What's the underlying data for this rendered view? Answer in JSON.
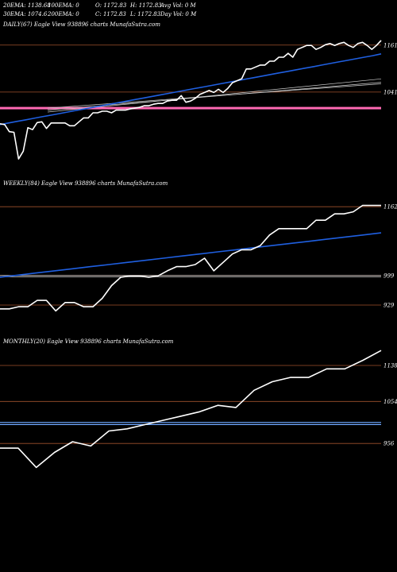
{
  "header": {
    "row1": {
      "ema20": "20EMA: 1138.68",
      "ema100": "100EMA: 0",
      "open": "O: 1172.83",
      "high": "H: 1172.83",
      "avgvol": "Avg Vol: 0  M"
    },
    "row2": {
      "ema30": "30EMA: 1074.6",
      "ema200": "200EMA: 0",
      "close": "C: 1172.83",
      "low": "L: 1172.83",
      "dayvol": "Day Vol: 0  M"
    }
  },
  "colors": {
    "price": "#ffffff",
    "ema": "#1f5fe0",
    "level": "#a0522d",
    "support": "#ff69b4",
    "support_weekly": "#cccccc",
    "support_monthly": "#6ea8ff"
  },
  "chart_data": [
    {
      "type": "line",
      "title": "DAILY(67) Eagle  View  938896  charts MunafaSutra.com",
      "levels": [
        {
          "value": 1161,
          "label": "1161"
        },
        {
          "value": 1041,
          "label": "1041"
        }
      ],
      "ylim": [
        850,
        1195
      ],
      "series": [
        {
          "values": [
            960,
            958,
            940,
            938,
            870,
            890,
            950,
            945,
            963,
            965,
            948,
            962,
            962,
            962,
            962,
            955,
            955,
            965,
            975,
            975,
            988,
            988,
            992,
            992,
            988,
            995,
            995,
            995,
            998,
            1000,
            1002,
            1006,
            1006,
            1010,
            1012,
            1012,
            1018,
            1020,
            1020,
            1032,
            1015,
            1018,
            1025,
            1035,
            1040,
            1045,
            1040,
            1048,
            1040,
            1050,
            1065,
            1070,
            1075,
            1100,
            1100,
            1105,
            1110,
            1110,
            1120,
            1120,
            1130,
            1130,
            1140,
            1130,
            1150,
            1155,
            1160,
            1160,
            1150,
            1155,
            1162,
            1165,
            1160,
            1165,
            1168,
            1160,
            1155,
            1165,
            1168,
            1160,
            1150,
            1160,
            1172.83
          ]
        },
        {
          "values": [
            958,
            962,
            966,
            970,
            974,
            978,
            982,
            986,
            990,
            994,
            998,
            1002,
            1006,
            1010,
            1014,
            1018,
            1022,
            1026,
            1030,
            1034,
            1038,
            1042,
            1046,
            1050,
            1054,
            1058,
            1062,
            1066,
            1070,
            1074,
            1078,
            1082,
            1086,
            1090,
            1094,
            1098,
            1102,
            1106,
            1110,
            1114,
            1118,
            1122,
            1126,
            1130,
            1134,
            1138.68
          ]
        },
        {
          "values": [
            990,
            1074.6
          ]
        },
        {
          "values": [
            995,
            1066
          ]
        },
        {
          "values": [
            1000,
            1062
          ]
        }
      ]
    },
    {
      "type": "line",
      "title": "WEEKLY(84) Eagle  View  938896  charts MunafaSutra.com",
      "levels": [
        {
          "value": 1162,
          "label": "1162"
        },
        {
          "value": 999,
          "label": "999"
        },
        {
          "value": 929,
          "label": "929"
        }
      ],
      "ylim": [
        880,
        1200
      ],
      "series": [
        {
          "values": [
            920,
            920,
            925,
            925,
            940,
            940,
            915,
            935,
            935,
            925,
            925,
            945,
            975,
            995,
            998,
            998,
            995,
            998,
            1010,
            1020,
            1020,
            1025,
            1040,
            1010,
            1030,
            1050,
            1060,
            1060,
            1070,
            1095,
            1110,
            1110,
            1110,
            1110,
            1130,
            1130,
            1145,
            1145,
            1150,
            1165,
            1165,
            1165
          ]
        },
        {
          "values": [
            995,
            1000,
            1005,
            1010,
            1015,
            1020,
            1025,
            1030,
            1035,
            1040,
            1045,
            1050,
            1055,
            1060,
            1065,
            1070,
            1075,
            1080,
            1085,
            1090,
            1095,
            1100
          ]
        },
        {
          "values": [
            999,
            999
          ]
        },
        {
          "values": [
            996,
            996
          ]
        }
      ]
    },
    {
      "type": "line",
      "title": "MONTHLY(20) Eagle  View  938896  charts MunafaSutra.com",
      "levels": [
        {
          "value": 1138,
          "label": "1138"
        },
        {
          "value": 1054,
          "label": "1054"
        },
        {
          "value": 956,
          "label": "956"
        }
      ],
      "ylim": [
        860,
        1175
      ],
      "series": [
        {
          "values": [
            945,
            945,
            900,
            935,
            960,
            950,
            985,
            990,
            1000,
            1010,
            1020,
            1030,
            1045,
            1040,
            1080,
            1100,
            1110,
            1110,
            1130,
            1130,
            1150,
            1172.83
          ]
        },
        {
          "values": [
            1005,
            1005
          ]
        },
        {
          "values": [
            1000,
            1000
          ]
        }
      ]
    }
  ]
}
